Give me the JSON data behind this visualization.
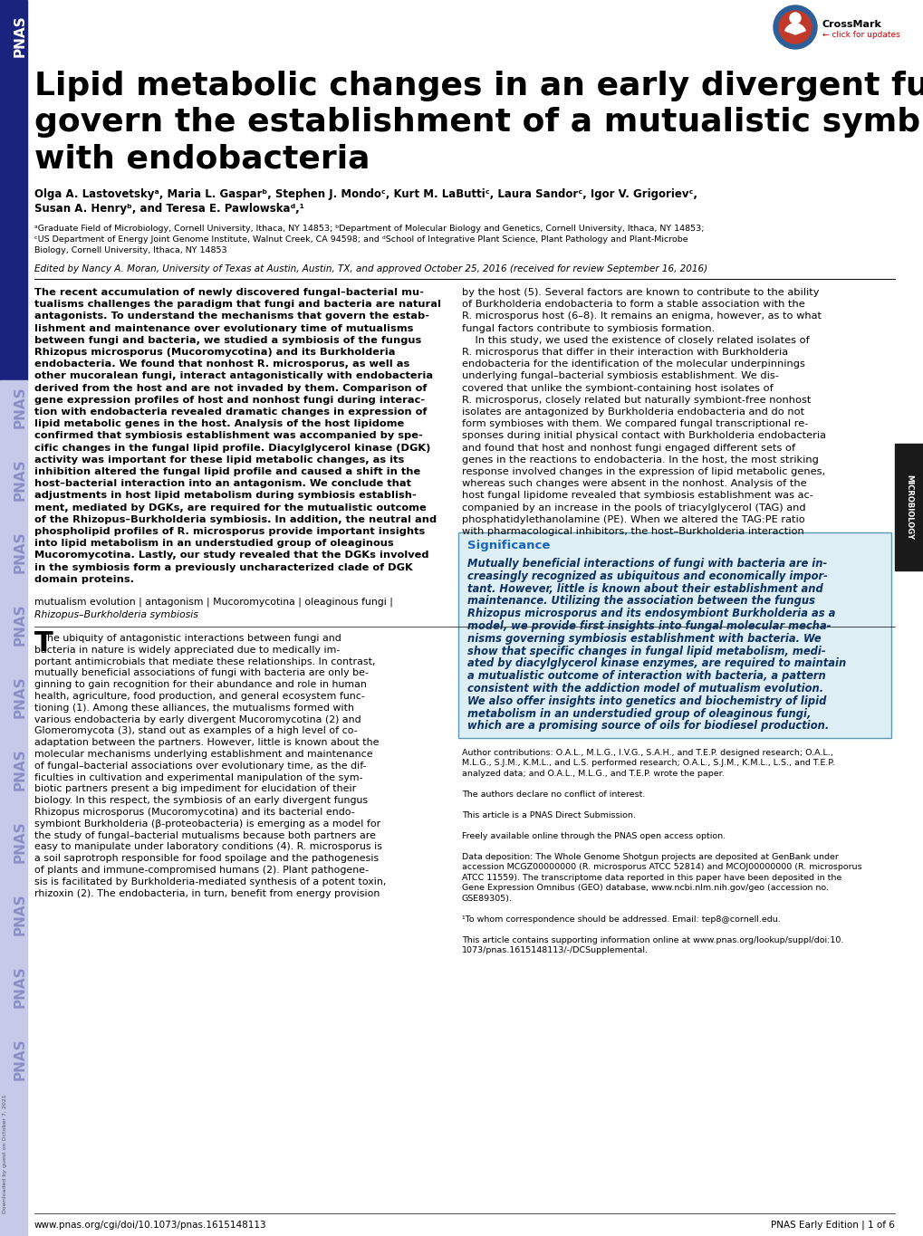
{
  "title_line1": "Lipid metabolic changes in an early divergent fungus",
  "title_line2": "govern the establishment of a mutualistic symbiosis",
  "title_line3": "with endobacteria",
  "authors": "Olga A. Lastovetskyᵃ, Maria L. Gasparᵇ, Stephen J. Mondoᶜ, Kurt M. LaButtiᶜ, Laura Sandorᶜ, Igor V. Grigorievᶜ,",
  "authors2": "Susan A. Henryᵇ, and Teresa E. Pawlowskaᵈ,¹",
  "aff1": "ᵃGraduate Field of Microbiology, Cornell University, Ithaca, NY 14853; ᵇDepartment of Molecular Biology and Genetics, Cornell University, Ithaca, NY 14853;",
  "aff2": "ᶜUS Department of Energy Joint Genome Institute, Walnut Creek, CA 94598; and ᵈSchool of Integrative Plant Science, Plant Pathology and Plant-Microbe",
  "aff3": "Biology, Cornell University, Ithaca, NY 14853",
  "edited_by": "Edited by Nancy A. Moran, University of Texas at Austin, Austin, TX, and approved October 25, 2016 (received for review September 16, 2016)",
  "abstract_left_lines": [
    "The recent accumulation of newly discovered fungal–bacterial mu-",
    "tualisms challenges the paradigm that fungi and bacteria are natural",
    "antagonists. To understand the mechanisms that govern the estab-",
    "lishment and maintenance over evolutionary time of mutualisms",
    "between fungi and bacteria, we studied a symbiosis of the fungus",
    "Rhizopus microsporus (Mucoromycotina) and its Burkholderia",
    "endobacteria. We found that nonhost R. microsporus, as well as",
    "other mucoralean fungi, interact antagonistically with endobacteria",
    "derived from the host and are not invaded by them. Comparison of",
    "gene expression profiles of host and nonhost fungi during interac-",
    "tion with endobacteria revealed dramatic changes in expression of",
    "lipid metabolic genes in the host. Analysis of the host lipidome",
    "confirmed that symbiosis establishment was accompanied by spe-",
    "cific changes in the fungal lipid profile. Diacylglycerol kinase (DGK)",
    "activity was important for these lipid metabolic changes, as its",
    "inhibition altered the fungal lipid profile and caused a shift in the",
    "host–bacterial interaction into an antagonism. We conclude that",
    "adjustments in host lipid metabolism during symbiosis establish-",
    "ment, mediated by DGKs, are required for the mutualistic outcome",
    "of the Rhizopus–Burkholderia symbiosis. In addition, the neutral and",
    "phospholipid profiles of R. microsporus provide important insights",
    "into lipid metabolism in an understudied group of oleaginous",
    "Mucoromycotina. Lastly, our study revealed that the DGKs involved",
    "in the symbiosis form a previously uncharacterized clade of DGK",
    "domain proteins."
  ],
  "abstract_right_lines": [
    "by the host (5). Several factors are known to contribute to the ability",
    "of Burkholderia endobacteria to form a stable association with the",
    "R. microsporus host (6–8). It remains an enigma, however, as to what",
    "fungal factors contribute to symbiosis formation.",
    "    In this study, we used the existence of closely related isolates of",
    "R. microsporus that differ in their interaction with Burkholderia",
    "endobacteria for the identification of the molecular underpinnings",
    "underlying fungal–bacterial symbiosis establishment. We dis-",
    "covered that unlike the symbiont-containing host isolates of",
    "R. microsporus, closely related but naturally symbiont-free nonhost",
    "isolates are antagonized by Burkholderia endobacteria and do not",
    "form symbioses with them. We compared fungal transcriptional re-",
    "sponses during initial physical contact with Burkholderia endobacteria",
    "and found that host and nonhost fungi engaged different sets of",
    "genes in the reactions to endobacteria. In the host, the most striking",
    "response involved changes in the expression of lipid metabolic genes,",
    "whereas such changes were absent in the nonhost. Analysis of the",
    "host fungal lipidome revealed that symbiosis establishment was ac-",
    "companied by an increase in the pools of triacylglycerol (TAG) and",
    "phosphatidylethanolamine (PE). When we altered the TAG:PE ratio",
    "with pharmacological inhibitors, the host–Burkholderia interaction"
  ],
  "kw1": "mutualism evolution | antagonism | Mucoromycotina | oleaginous fungi |",
  "kw2": "Rhizopus–Burkholderia symbiosis",
  "sig_title": "Significance",
  "sig_lines": [
    "Mutually beneficial interactions of fungi with bacteria are in-",
    "creasingly recognized as ubiquitous and economically impor-",
    "tant. However, little is known about their establishment and",
    "maintenance. Utilizing the association between the fungus",
    "Rhizopus microsporus and its endosymbiont Burkholderia as a",
    "model, we provide first insights into fungal molecular mecha-",
    "nisms governing symbiosis establishment with bacteria. We",
    "show that specific changes in fungal lipid metabolism, medi-",
    "ated by diacylglycerol kinase enzymes, are required to maintain",
    "a mutualistic outcome of interaction with bacteria, a pattern",
    "consistent with the addiction model of mutualism evolution.",
    "We also offer insights into genetics and biochemistry of lipid",
    "metabolism in an understudied group of oleaginous fungi,",
    "which are a promising source of oils for biodiesel production."
  ],
  "intro_lines_left": [
    "he ubiquity of antagonistic interactions between fungi and",
    "bacteria in nature is widely appreciated due to medically im-",
    "portant antimicrobials that mediate these relationships. In contrast,",
    "mutually beneficial associations of fungi with bacteria are only be-",
    "ginning to gain recognition for their abundance and role in human",
    "health, agriculture, food production, and general ecosystem func-",
    "tioning (1). Among these alliances, the mutualisms formed with",
    "various endobacteria by early divergent Mucoromycotina (2) and",
    "Glomeromycota (3), stand out as examples of a high level of co-",
    "adaptation between the partners. However, little is known about the",
    "molecular mechanisms underlying establishment and maintenance",
    "of fungal–bacterial associations over evolutionary time, as the dif-",
    "ficulties in cultivation and experimental manipulation of the sym-",
    "biotic partners present a big impediment for elucidation of their",
    "biology. In this respect, the symbiosis of an early divergent fungus",
    "Rhizopus microsporus (Mucoromycotina) and its bacterial endo-",
    "symbiont Burkholderia (β-proteobacteria) is emerging as a model for",
    "the study of fungal–bacterial mutualisms because both partners are",
    "easy to manipulate under laboratory conditions (4). R. microsporus is",
    "a soil saprotroph responsible for food spoilage and the pathogenesis",
    "of plants and immune-compromised humans (2). Plant pathogene-",
    "sis is facilitated by Burkholderia-mediated synthesis of a potent toxin,",
    "rhizoxin (2). The endobacteria, in turn, benefit from energy provision"
  ],
  "intro_lines_right": [
    "Author contributions: O.A.L., M.L.G., I.V.G., S.A.H., and T.E.P. designed research; O.A.L.,",
    "M.L.G., S.J.M., K.M.L., and L.S. performed research; O.A.L., S.J.M., K.M.L., L.S., and T.E.P.",
    "analyzed data; and O.A.L., M.L.G., and T.E.P. wrote the paper.",
    "",
    "The authors declare no conflict of interest.",
    "",
    "This article is a PNAS Direct Submission.",
    "",
    "Freely available online through the PNAS open access option.",
    "",
    "Data deposition: The Whole Genome Shotgun projects are deposited at GenBank under",
    "accession MCGZ00000000 (R. microsporus ATCC 52814) and MCOJ00000000 (R. microsporus",
    "ATCC 11559). The transcriptome data reported in this paper have been deposited in the",
    "Gene Expression Omnibus (GEO) database, www.ncbi.nlm.nih.gov/geo (accession no.",
    "GSE89305).",
    "",
    "¹To whom correspondence should be addressed. Email: tep8@cornell.edu.",
    "",
    "This article contains supporting information online at www.pnas.org/lookup/suppl/doi:10.",
    "1073/pnas.1615148113/-/DCSupplemental."
  ],
  "footer_left": "www.pnas.org/cgi/doi/10.1073/pnas.1615148113",
  "footer_right": "PNAS Early Edition | 1 of 6",
  "bg_color": "#ffffff",
  "sidebar_dark": "#1a237e",
  "sidebar_light": "#c5cae9",
  "sig_bg": "#deeef5",
  "sig_border": "#5b9ab5",
  "sig_title_color": "#1565c0",
  "sig_text_color": "#0d3060",
  "micro_bg": "#1a1a1a",
  "micro_color": "#ffffff"
}
